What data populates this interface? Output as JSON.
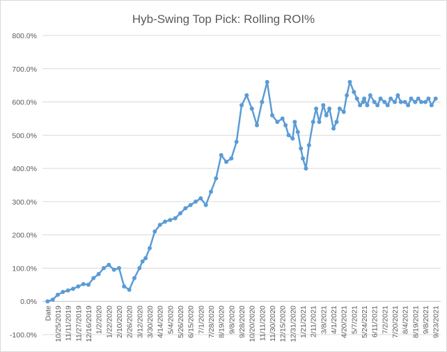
{
  "chart_data": {
    "type": "line",
    "title": "Hyb-Swing Top Pick: Rolling ROI%",
    "xlabel": "",
    "ylabel": "",
    "ylim": [
      -100,
      800
    ],
    "y_ticks": [
      "-100.0%",
      "0.0%",
      "100.0%",
      "200.0%",
      "300.0%",
      "400.0%",
      "500.0%",
      "600.0%",
      "700.0%",
      "800.0%"
    ],
    "y_tick_values": [
      -100,
      0,
      100,
      200,
      300,
      400,
      500,
      600,
      700,
      800
    ],
    "x_ticks": [
      "Date",
      "10/25/2019",
      "11/11/2019",
      "11/27/2019",
      "12/16/2019",
      "1/2/2020",
      "1/22/2020",
      "2/10/2020",
      "2/26/2020",
      "3/12/2020",
      "3/30/2020",
      "4/14/2020",
      "5/4/2020",
      "5/26/2020",
      "6/15/2020",
      "7/1/2020",
      "7/28/2020",
      "8/19/2020",
      "9/8/2020",
      "9/28/2020",
      "10/20/2020",
      "11/11/2020",
      "11/30/2020",
      "12/15/2020",
      "12/31/2020",
      "1/21/2021",
      "2/11/2021",
      "3/8/2021",
      "4/1/2021",
      "4/20/2021",
      "5/7/2021",
      "5/24/2021",
      "6/11/2021",
      "7/2/2021",
      "7/20/2021",
      "8/4/2021",
      "8/19/2021",
      "9/8/2021",
      "9/23/2021"
    ],
    "series": [
      {
        "name": "Rolling ROI%",
        "color": "#5b9bd5",
        "x_positions": [
          0.0,
          0.5,
          1.0,
          1.5,
          2.0,
          2.5,
          3.0,
          3.5,
          4.0,
          4.5,
          5.0,
          5.5,
          6.0,
          6.5,
          7.0,
          7.5,
          8.0,
          8.5,
          9.0,
          9.3,
          9.6,
          10.0,
          10.5,
          11.0,
          11.5,
          12.0,
          12.5,
          13.0,
          13.5,
          14.0,
          14.5,
          15.0,
          15.5,
          16.0,
          16.5,
          17.0,
          17.5,
          18.0,
          18.5,
          19.0,
          19.5,
          20.0,
          20.5,
          21.0,
          21.5,
          22.0,
          22.5,
          23.0,
          23.3,
          23.6,
          24.0,
          24.2,
          24.5,
          24.8,
          25.0,
          25.3,
          25.6,
          26.0,
          26.3,
          26.6,
          27.0,
          27.3,
          27.6,
          28.0,
          28.3,
          28.6,
          29.0,
          29.3,
          29.6,
          30.0,
          30.3,
          30.6,
          30.9,
          31.0,
          31.3,
          31.6,
          32.0,
          32.3,
          32.6,
          33.0,
          33.3,
          33.6,
          34.0,
          34.3,
          34.6,
          35.0,
          35.3,
          35.6,
          36.0,
          36.3,
          36.6,
          37.0,
          37.3,
          37.6,
          38.0
        ],
        "values": [
          0,
          5,
          20,
          28,
          33,
          38,
          45,
          52,
          50,
          70,
          82,
          100,
          110,
          95,
          100,
          45,
          35,
          70,
          100,
          120,
          130,
          160,
          210,
          230,
          240,
          245,
          250,
          265,
          280,
          290,
          300,
          310,
          290,
          330,
          370,
          440,
          420,
          430,
          480,
          590,
          620,
          580,
          530,
          600,
          660,
          560,
          540,
          550,
          530,
          500,
          490,
          540,
          510,
          460,
          430,
          400,
          470,
          540,
          580,
          540,
          590,
          560,
          580,
          520,
          540,
          580,
          570,
          620,
          660,
          630,
          610,
          590,
          600,
          610,
          590,
          620,
          600,
          590,
          610,
          600,
          590,
          610,
          600,
          620,
          600,
          600,
          590,
          610,
          600,
          610,
          600,
          600,
          610,
          590,
          610
        ]
      }
    ]
  }
}
